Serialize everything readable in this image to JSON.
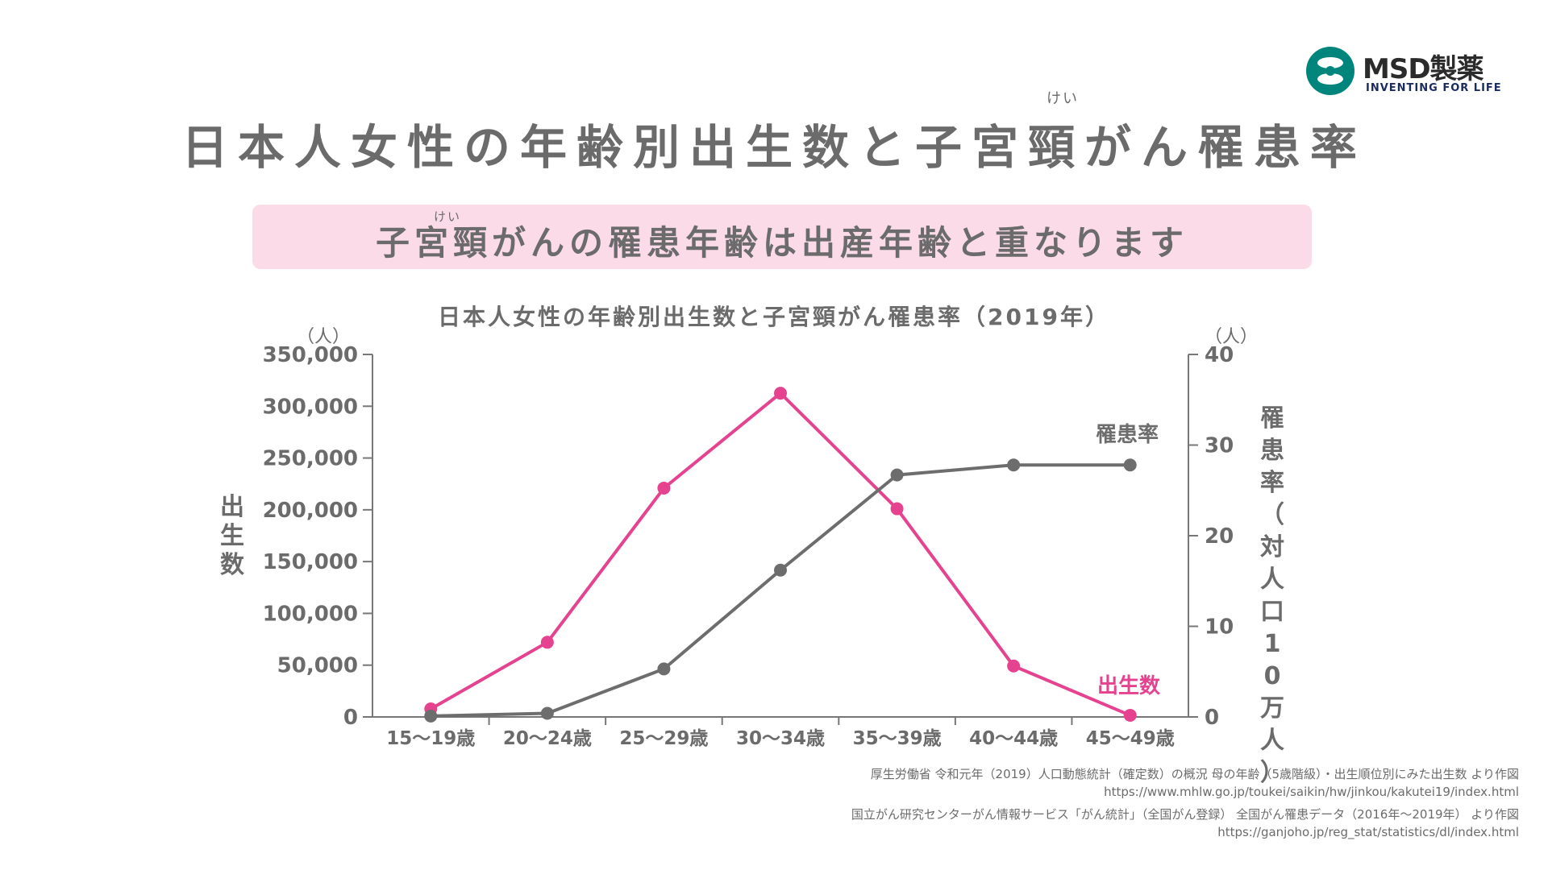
{
  "brand": {
    "name": "MSD製薬",
    "tagline": "INVENTING FOR LIFE",
    "colors": {
      "teal": "#00857c",
      "navy": "#1a2b5e"
    }
  },
  "title": {
    "main": "日本人女性の年齢別出生数と子宮頸がん罹患率",
    "ruby": "けい"
  },
  "banner": {
    "text": "子宮頸がんの罹患年齢は出産年齢と重なります",
    "ruby": "けい",
    "color": "#fbdbe8"
  },
  "chart_data": {
    "type": "line",
    "title": "日本人女性の年齢別出生数と子宮頸がん罹患率（2019年）",
    "categories": [
      "15～19歳",
      "20～24歳",
      "25～29歳",
      "30～34歳",
      "35～39歳",
      "40～44歳",
      "45～49歳"
    ],
    "y_left": {
      "label": "出生数",
      "unit": "（人）",
      "range": [
        0,
        350000
      ],
      "ticks": [
        "0",
        "50,000",
        "100,000",
        "150,000",
        "200,000",
        "250,000",
        "300,000",
        "350,000"
      ]
    },
    "y_right": {
      "label": "罹患率（対人口10万人）",
      "unit": "（人）",
      "range": [
        0,
        40
      ],
      "ticks": [
        "0",
        "10",
        "20",
        "30",
        "40"
      ]
    },
    "series": [
      {
        "name": "出生数",
        "axis": "left",
        "color": "#e5438f",
        "values": [
          7742,
          72092,
          220933,
          312582,
          201010,
          49191,
          1593
        ]
      },
      {
        "name": "罹患率",
        "axis": "right",
        "color": "#6d6d6d",
        "values": [
          0.1,
          0.4,
          5.3,
          16.2,
          26.7,
          27.8,
          27.8
        ]
      }
    ],
    "grid": false,
    "legend": "inline labels"
  },
  "sources": [
    {
      "text": "厚生労働省 令和元年（2019）人口動態統計（確定数）の概況 母の年齢（5歳階級）・出生順位別にみた出生数 より作図",
      "url": "https://www.mhlw.go.jp/toukei/saikin/hw/jinkou/kakutei19/index.html"
    },
    {
      "text": "国立がん研究センターがん情報サービス「がん統計」（全国がん登録） 全国がん罹患データ（2016年～2019年） より作図",
      "url": "https://ganjoho.jp/reg_stat/statistics/dl/index.html"
    }
  ]
}
